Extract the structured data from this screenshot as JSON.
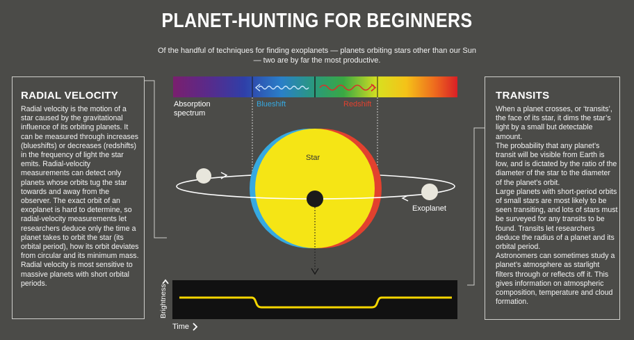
{
  "header": {
    "title": "PLANET-HUNTING FOR BEGINNERS",
    "subtitle": "Of the handful of techniques for finding exoplanets — planets orbiting stars other than our Sun — two are by far the most productive."
  },
  "radial_velocity": {
    "heading": "RADIAL VELOCITY",
    "body": "Radial velocity is the motion of a star caused by the gravitational influence of its orbiting planets. It can be measured through increases (blueshifts) or decreases (redshifts) in the frequency of light the star emits. Radial-velocity measurements can detect only planets whose orbits tug the star towards and away from the observer. The exact orbit of an exoplanet is hard to determine, so radial-velocity measurements let researchers deduce only the time a planet takes to orbit the star (its orbital period), how its orbit deviates from circular and its minimum mass. Radial velocity is most sensitive to massive planets with short orbital periods."
  },
  "transits": {
    "heading": "TRANSITS",
    "body": "When a planet crosses, or ‘transits’, the face of its star, it dims the star’s light by a small but detectable amount.\nThe probability that any planet’s transit will be visible from Earth is low, and is dictated by the ratio of the diameter of the star to the diameter of the planet’s orbit.\nLarge planets with short-period orbits of small stars are most likely to be seen transiting, and lots of stars must be surveyed for any transits to be found. Transits let researchers deduce the radius of a planet and its orbital period.\nAstronomers can sometimes study a planet’s atmosphere as starlight filters through or reflects off it. This gives information on atmospheric composition, temperature and cloud formation."
  },
  "diagram": {
    "absorption_label": "Absorption spectrum",
    "blueshift_label": "Blueshift",
    "redshift_label": "Redshift",
    "star_label": "Star",
    "exoplanet_label": "Exoplanet",
    "brightness_label": "Brightness",
    "time_label": "Time"
  },
  "colors": {
    "background": "#4b4b48",
    "star": "#f5e515",
    "blueshift": "#36a9e1",
    "redshift": "#e2412e",
    "curve": "#f5d600"
  }
}
